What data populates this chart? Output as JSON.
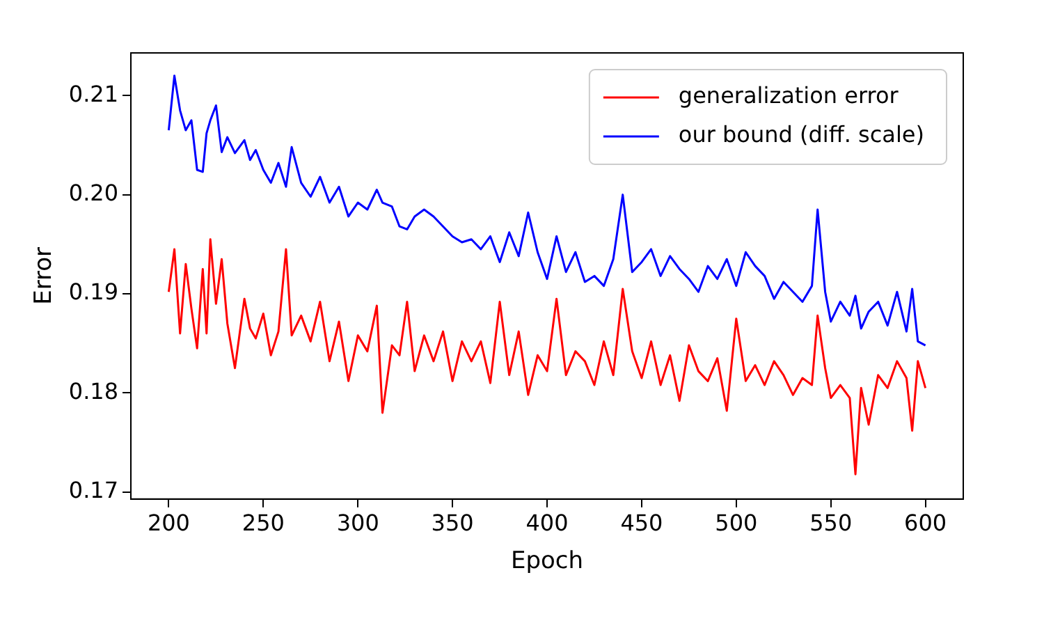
{
  "chart_data": {
    "type": "line",
    "xlabel": "Epoch",
    "ylabel": "Error",
    "x": [
      200,
      203,
      206,
      209,
      212,
      215,
      218,
      220,
      222,
      225,
      228,
      231,
      235,
      240,
      243,
      246,
      250,
      254,
      258,
      262,
      265,
      270,
      275,
      280,
      285,
      290,
      295,
      300,
      305,
      310,
      313,
      318,
      322,
      326,
      330,
      335,
      340,
      345,
      350,
      355,
      360,
      365,
      370,
      375,
      380,
      385,
      390,
      395,
      400,
      405,
      410,
      415,
      420,
      425,
      430,
      435,
      440,
      445,
      450,
      455,
      460,
      465,
      470,
      475,
      480,
      485,
      490,
      495,
      500,
      505,
      510,
      515,
      520,
      525,
      530,
      535,
      540,
      543,
      547,
      550,
      555,
      560,
      563,
      566,
      570,
      575,
      580,
      585,
      590,
      593,
      596,
      600
    ],
    "series": [
      {
        "name": "generalization error",
        "color": "#ff0000",
        "values": [
          0.1902,
          0.1945,
          0.186,
          0.193,
          0.1885,
          0.1845,
          0.1925,
          0.186,
          0.1955,
          0.189,
          0.1935,
          0.187,
          0.1825,
          0.1895,
          0.1865,
          0.1855,
          0.188,
          0.1838,
          0.1862,
          0.1945,
          0.1858,
          0.1878,
          0.1852,
          0.1892,
          0.1832,
          0.1872,
          0.1812,
          0.1858,
          0.1842,
          0.1888,
          0.178,
          0.1848,
          0.1838,
          0.1892,
          0.1822,
          0.1858,
          0.1832,
          0.1862,
          0.1812,
          0.1852,
          0.1832,
          0.1852,
          0.181,
          0.1892,
          0.1818,
          0.1862,
          0.1798,
          0.1838,
          0.1822,
          0.1895,
          0.1818,
          0.1842,
          0.1832,
          0.1808,
          0.1852,
          0.1818,
          0.1905,
          0.1842,
          0.1815,
          0.1852,
          0.1808,
          0.1838,
          0.1792,
          0.1848,
          0.1822,
          0.1812,
          0.1835,
          0.1782,
          0.1875,
          0.1812,
          0.1828,
          0.1808,
          0.1832,
          0.1818,
          0.1798,
          0.1815,
          0.1808,
          0.1878,
          0.1825,
          0.1795,
          0.1808,
          0.1795,
          0.1718,
          0.1805,
          0.1768,
          0.1818,
          0.1805,
          0.1832,
          0.1815,
          0.1762,
          0.1832,
          0.1805
        ]
      },
      {
        "name": "our bound (diff. scale)",
        "color": "#0000ff",
        "values": [
          0.2065,
          0.212,
          0.2085,
          0.2065,
          0.2075,
          0.2025,
          0.2023,
          0.2062,
          0.2075,
          0.209,
          0.2043,
          0.2058,
          0.2042,
          0.2055,
          0.2035,
          0.2045,
          0.2025,
          0.2012,
          0.2032,
          0.2008,
          0.2048,
          0.2012,
          0.1998,
          0.2018,
          0.1992,
          0.2008,
          0.1978,
          0.1992,
          0.1985,
          0.2005,
          0.1992,
          0.1988,
          0.1968,
          0.1965,
          0.1978,
          0.1985,
          0.1978,
          0.1968,
          0.1958,
          0.1952,
          0.1955,
          0.1945,
          0.1958,
          0.1932,
          0.1962,
          0.1938,
          0.1982,
          0.1942,
          0.1915,
          0.1958,
          0.1922,
          0.1942,
          0.1912,
          0.1918,
          0.1908,
          0.1935,
          0.2,
          0.1922,
          0.1932,
          0.1945,
          0.1918,
          0.1938,
          0.1925,
          0.1915,
          0.1902,
          0.1928,
          0.1915,
          0.1935,
          0.1908,
          0.1942,
          0.1928,
          0.1918,
          0.1895,
          0.1912,
          0.1902,
          0.1892,
          0.1908,
          0.1985,
          0.1902,
          0.1872,
          0.1892,
          0.1878,
          0.1898,
          0.1865,
          0.1882,
          0.1892,
          0.1868,
          0.1902,
          0.1862,
          0.1905,
          0.1852,
          0.1848
        ]
      }
    ],
    "xlim": [
      180,
      620
    ],
    "xticks": [
      200,
      250,
      300,
      350,
      400,
      450,
      500,
      550,
      600
    ],
    "ylim": [
      0.1693,
      0.2143
    ],
    "yticks": [
      {
        "value": 0.17,
        "label": "0.17"
      },
      {
        "value": 0.18,
        "label": "0.18"
      },
      {
        "value": 0.19,
        "label": "0.19"
      },
      {
        "value": 0.2,
        "label": "0.20"
      },
      {
        "value": 0.21,
        "label": "0.21"
      }
    ],
    "grid": false,
    "legend": "top right",
    "marker": "none",
    "line_style": "solid"
  }
}
